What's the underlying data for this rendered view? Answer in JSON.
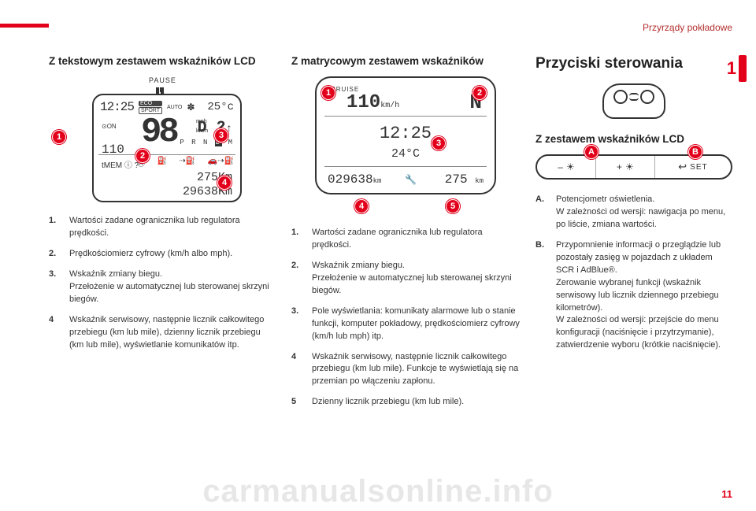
{
  "header": {
    "category": "Przyrządy pokładowe"
  },
  "chapter_number": "1",
  "page_number": "11",
  "watermark": "carmanualsonline.info",
  "col1": {
    "title": "Z tekstowym zestawem wskaźników LCD",
    "lcd": {
      "pause_label": "PAUSE",
      "clock": "12:25",
      "eco": "ECO",
      "sport": "SPORT",
      "auto": "AUTO",
      "temp": "25°c",
      "speed_big": "98",
      "mph": "mph",
      "kmh": "km/h",
      "gear": "D 2",
      "prndm": {
        "p": "P",
        "r": "R",
        "n": "N",
        "d": "D",
        "m": "M"
      },
      "on": "⊙ON",
      "speed_set": "110",
      "mem": "tMEM",
      "trip1": "275Km",
      "trip2": "29638Km"
    },
    "callouts": [
      "1",
      "2",
      "3",
      "4"
    ],
    "items": [
      {
        "num": "1.",
        "text": "Wartości zadane ogranicznika lub regulatora prędkości."
      },
      {
        "num": "2.",
        "text": "Prędkościomierz cyfrowy (km/h albo mph)."
      },
      {
        "num": "3.",
        "text": "Wskaźnik zmiany biegu.\nPrzełożenie w automatycznej lub sterowanej skrzyni biegów."
      },
      {
        "num": "4",
        "text": "Wskaźnik serwisowy, następnie licznik całkowitego przebiegu (km lub mile), dzienny licznik przebiegu (km lub mile), wyświetlanie komunikatów itp."
      }
    ]
  },
  "col2": {
    "title": "Z matrycowym zestawem wskaźników",
    "lcd": {
      "cruise": "CRUISE",
      "speed": "110",
      "speed_unit": "km/h",
      "gear": "N",
      "clock": "12:25",
      "temp": "24°C",
      "odo": "029638",
      "odo_unit": "km",
      "trip": "275",
      "trip_unit": "km"
    },
    "callouts": [
      "1",
      "2",
      "3",
      "4",
      "5"
    ],
    "items": [
      {
        "num": "1.",
        "text": "Wartości zadane ogranicznika lub regulatora prędkości."
      },
      {
        "num": "2.",
        "text": "Wskaźnik zmiany biegu.\nPrzełożenie w automatycznej lub sterowanej skrzyni biegów."
      },
      {
        "num": "3.",
        "text": "Pole wyświetlania: komunikaty alarmowe lub o stanie funkcji, komputer pokładowy, prędkościomierz cyfrowy (km/h lub mph) itp."
      },
      {
        "num": "4",
        "text": "Wskaźnik serwisowy, następnie licznik całkowitego przebiegu (km lub mile). Funkcje te wyświetlają się na przemian po włączeniu zapłonu."
      },
      {
        "num": "5",
        "text": "Dzienny licznik przebiegu (km lub mile)."
      }
    ]
  },
  "col3": {
    "title": "Przyciski sterowania",
    "subtitle": "Z zestawem wskaźników LCD",
    "strip": {
      "minus": "–",
      "plus": "+",
      "set": "SET"
    },
    "callouts": {
      "A": "A",
      "B": "B"
    },
    "items": [
      {
        "num": "A.",
        "text": "Potencjometr oświetlenia.\nW zależności od wersji: nawigacja po menu, po liście, zmiana wartości."
      },
      {
        "num": "B.",
        "text": "Przypomnienie informacji o przeglądzie lub pozostały zasięg w pojazdach z układem SCR i AdBlue®.\nZerowanie wybranej funkcji (wskaźnik serwisowy lub licznik dziennego przebiegu kilometrów).\nW zależności od wersji: przejście do menu konfiguracji (naciśnięcie i przytrzymanie), zatwierdzenie wyboru (krótkie naciśnięcie)."
      }
    ]
  }
}
